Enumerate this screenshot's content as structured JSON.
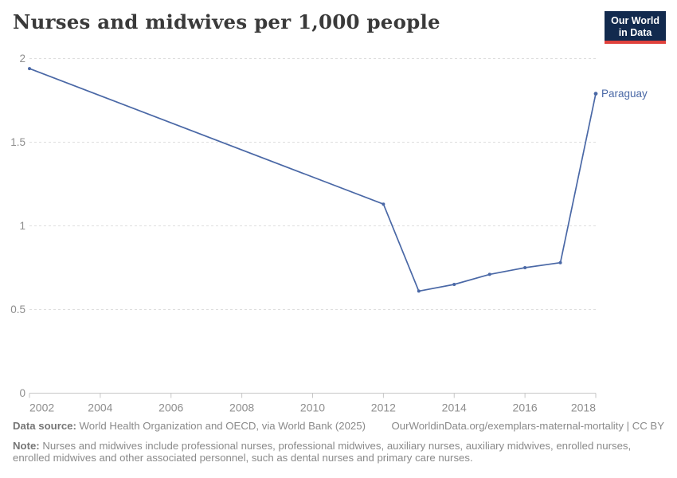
{
  "header": {
    "title": "Nurses and midwives per 1,000 people",
    "logo": {
      "line1": "Our World",
      "line2": "in Data"
    }
  },
  "chart_data": {
    "type": "line",
    "title": "Nurses and midwives per 1,000 people",
    "xlabel": "",
    "ylabel": "",
    "xlim": [
      2002,
      2018
    ],
    "ylim": [
      0,
      2
    ],
    "x_ticks": [
      2002,
      2004,
      2006,
      2008,
      2010,
      2012,
      2014,
      2016,
      2018
    ],
    "x_tick_labels": [
      "2002",
      "2004",
      "2006",
      "2008",
      "2010",
      "2012",
      "2014",
      "2016",
      "2018"
    ],
    "y_ticks": [
      0,
      0.5,
      1,
      1.5,
      2
    ],
    "y_tick_labels": [
      "0",
      "0.5",
      "1",
      "1.5",
      "2"
    ],
    "grid": "horizontal-dashed",
    "legend_position": "end-of-line-label",
    "series": [
      {
        "name": "Paraguay",
        "color": "#4a68a6",
        "points": [
          [
            2002,
            1.94
          ],
          [
            2012,
            1.13
          ],
          [
            2013,
            0.61
          ],
          [
            2014,
            0.65
          ],
          [
            2015,
            0.71
          ],
          [
            2016,
            0.75
          ],
          [
            2017,
            0.78
          ],
          [
            2018,
            1.79
          ]
        ]
      }
    ]
  },
  "footer": {
    "data_source_label": "Data source:",
    "data_source_text": " World Health Organization and OECD, via World Bank (2025)",
    "link_text": "OurWorldinData.org/exemplars-maternal-mortality | CC BY",
    "note_label": "Note:",
    "note_text": " Nurses and midwives include professional nurses, professional midwives, auxiliary nurses, auxiliary midwives, enrolled nurses, enrolled midwives and other associated personnel, such as dental nurses and primary care nurses."
  },
  "colors": {
    "series_blue": "#4a68a6",
    "gridline": "#dedede",
    "axis": "#c6c6c6",
    "tick_label": "#8e8e8e",
    "title_text": "#3a3a3a",
    "footer_text": "#8a8a8a",
    "logo_background": "#122a4e",
    "logo_red_bar": "#e0413c"
  }
}
